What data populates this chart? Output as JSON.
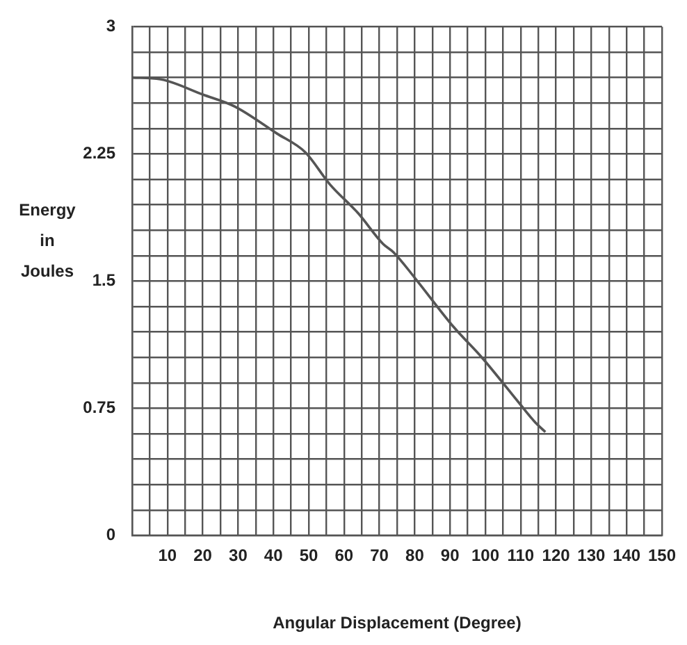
{
  "chart_data": {
    "type": "line",
    "xlabel": "Angular Displacement (Degree)",
    "ylabel": "Energy\nin\nJoules",
    "x": [
      0,
      8,
      20,
      29,
      41,
      49,
      56,
      64,
      71,
      74,
      80,
      91,
      99,
      110,
      114,
      117
    ],
    "values": [
      2.7,
      2.69,
      2.6,
      2.53,
      2.37,
      2.26,
      2.07,
      1.9,
      1.72,
      1.67,
      1.52,
      1.23,
      1.05,
      0.77,
      0.67,
      0.61
    ],
    "color": "#555555",
    "marker": "none",
    "line_style": "solid",
    "grid": true,
    "xlim": [
      0,
      150
    ],
    "xticks": [
      {
        "value": 0,
        "label": null
      },
      {
        "value": 5,
        "label": null
      },
      10,
      {
        "value": 15,
        "label": null
      },
      20,
      {
        "value": 25,
        "label": null
      },
      30,
      {
        "value": 35,
        "label": null
      },
      40,
      {
        "value": 45,
        "label": null
      },
      50,
      {
        "value": 55,
        "label": null
      },
      60,
      {
        "value": 65,
        "label": null
      },
      70,
      {
        "value": 75,
        "label": null
      },
      80,
      {
        "value": 85,
        "label": null
      },
      90,
      {
        "value": 95,
        "label": null
      },
      100,
      {
        "value": 105,
        "label": null
      },
      110,
      {
        "value": 115,
        "label": null
      },
      120,
      {
        "value": 125,
        "label": null
      },
      130,
      {
        "value": 135,
        "label": null
      },
      140,
      {
        "value": 145,
        "label": null
      },
      150
    ],
    "ylim": [
      0,
      3
    ],
    "yticks": [
      0,
      {
        "value": 0.15,
        "label": null
      },
      {
        "value": 0.3,
        "label": null
      },
      {
        "value": 0.45,
        "label": null
      },
      {
        "value": 0.6,
        "label": null
      },
      0.75,
      {
        "value": 0.9,
        "label": null
      },
      {
        "value": 1.05,
        "label": null
      },
      {
        "value": 1.2,
        "label": null
      },
      {
        "value": 1.35,
        "label": null
      },
      1.5,
      {
        "value": 1.65,
        "label": null
      },
      {
        "value": 1.8,
        "label": null
      },
      {
        "value": 1.95,
        "label": null
      },
      {
        "value": 2.1,
        "label": null
      },
      2.25,
      {
        "value": 2.4,
        "label": null
      },
      {
        "value": 2.55,
        "label": null
      },
      {
        "value": 2.7,
        "label": null
      },
      {
        "value": 2.85,
        "label": null
      },
      3
    ]
  }
}
